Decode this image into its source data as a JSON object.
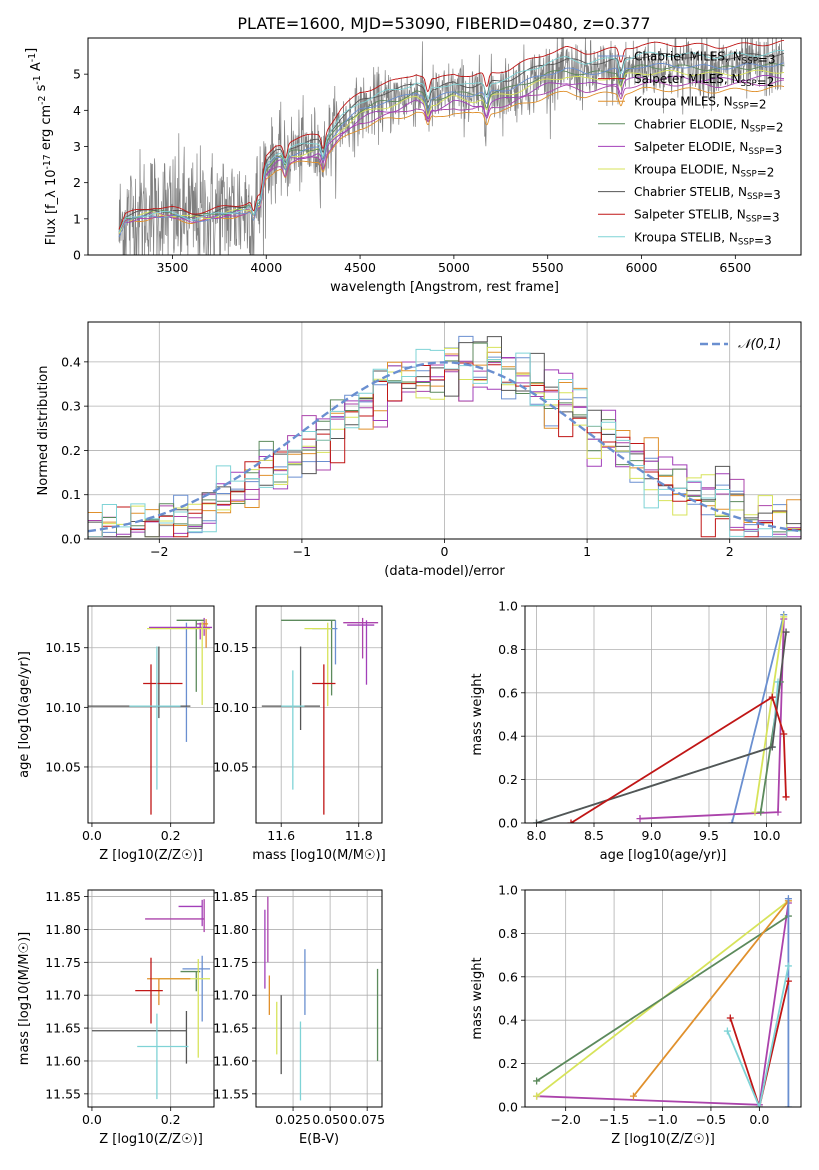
{
  "palette": [
    "#6a8fd0",
    "#ab43ab",
    "#e0902c",
    "#5c8a5c",
    "#a23fb9",
    "#d7e35a",
    "#555555",
    "#c01616",
    "#7fd3d6"
  ],
  "chart_data": [
    {
      "id": "spectrum",
      "type": "line",
      "title": "PLATE=1600, MJD=53090, FIBERID=0480, z=0.377",
      "xlabel": "wavelength [Angstrom, rest frame]",
      "ylabel": "Flux [f_λ 10^-17 erg cm^-2 s^-1 A^-1]",
      "xlim": [
        3050,
        6850
      ],
      "ylim": [
        0,
        6
      ],
      "xticks": [
        3500,
        4000,
        4500,
        5000,
        5500,
        6000,
        6500
      ],
      "yticks": [
        0,
        1,
        2,
        3,
        4,
        5
      ],
      "grid": false,
      "legend_position": "top-right",
      "legend": [
        "Chabrier MILES, N_SSP=3",
        "Salpeter MILES, N_SSP=2",
        "Kroupa MILES, N_SSP=2",
        "Chabrier ELODIE, N_SSP=2",
        "Salpeter ELODIE, N_SSP=3",
        "Kroupa ELODIE, N_SSP=2",
        "Chabrier STELIB, N_SSP=3",
        "Salpeter STELIB, N_SSP=3",
        "Kroupa STELIB, N_SSP=3"
      ],
      "continuum_x": [
        3200,
        3250,
        3400,
        3500,
        3600,
        3700,
        3800,
        3900,
        3950,
        4000,
        4050,
        4100,
        4200,
        4300,
        4400,
        4500,
        4600,
        4700,
        4800,
        4900,
        5000,
        5100,
        5200,
        5300,
        5400,
        5500,
        5600,
        5700,
        5800,
        5900,
        6000,
        6200,
        6400,
        6600,
        6750
      ],
      "continuum_y": [
        0.5,
        1.0,
        1.2,
        1.15,
        1.05,
        1.1,
        1.2,
        1.3,
        1.5,
        2.4,
        2.7,
        2.8,
        2.9,
        3.0,
        3.6,
        4.0,
        4.2,
        4.3,
        4.5,
        4.3,
        4.5,
        4.4,
        4.5,
        4.6,
        4.8,
        5.0,
        5.1,
        5.0,
        5.05,
        5.1,
        5.2,
        5.2,
        5.15,
        5.2,
        5.25
      ],
      "observed_series": "noisy grey spectrum around the model continuum"
    },
    {
      "id": "residuals",
      "type": "line",
      "xlabel": "(data-model)/error",
      "ylabel": "Normed distribution",
      "xlim": [
        -2.5,
        2.5
      ],
      "ylim": [
        0,
        0.49
      ],
      "xticks": [
        -2,
        -1,
        0,
        1,
        2
      ],
      "yticks": [
        0.0,
        0.1,
        0.2,
        0.3,
        0.4
      ],
      "grid": true,
      "legend_position": "top-right",
      "legend": [
        "𝒩(0,1)"
      ],
      "histogram_centre": 0.15,
      "histogram_sigma": 0.98
    },
    {
      "id": "age-vs-Z",
      "type": "scatter",
      "xlabel": "Z [log10(Z/Z☉)]",
      "ylabel": "age  [log10(age/yr)]",
      "xlim": [
        -0.01,
        0.31
      ],
      "ylim": [
        10.003,
        10.185
      ],
      "xticks": [
        0.0,
        0.2
      ],
      "yticks": [
        10.05,
        10.1,
        10.15
      ],
      "grid": true,
      "points": [
        {
          "x": 0.24,
          "y": 10.101,
          "xerr": [
            0.085,
            0.0
          ],
          "yerr": [
            0.03,
            0.07
          ],
          "c": 0
        },
        {
          "x": 0.285,
          "y": 10.17,
          "xerr": [
            0.02,
            0.005
          ],
          "yerr": [
            0.01,
            0.005
          ],
          "c": 1
        },
        {
          "x": 0.29,
          "y": 10.17,
          "xerr": [
            0.01,
            0.005
          ],
          "yerr": [
            0.02,
            0.004
          ],
          "c": 2
        },
        {
          "x": 0.265,
          "y": 10.173,
          "xerr": [
            0.05,
            0.02
          ],
          "yerr": [
            0.06,
            0.0
          ],
          "c": 3
        },
        {
          "x": 0.275,
          "y": 10.167,
          "xerr": [
            0.13,
            0.03
          ],
          "yerr": [
            0.01,
            0.004
          ],
          "c": 4
        },
        {
          "x": 0.28,
          "y": 10.166,
          "xerr": [
            0.14,
            0.02
          ],
          "yerr": [
            0.064,
            0.006
          ],
          "c": 5
        },
        {
          "x": 0.17,
          "y": 10.101,
          "xerr": [
            0.2,
            0.08
          ],
          "yerr": [
            0.01,
            0.05
          ],
          "c": 6
        },
        {
          "x": 0.15,
          "y": 10.12,
          "xerr": [
            0.02,
            0.08
          ],
          "yerr": [
            0.11,
            0.016
          ],
          "c": 7
        },
        {
          "x": 0.165,
          "y": 10.101,
          "xerr": [
            0.07,
            0.06
          ],
          "yerr": [
            0.07,
            0.05
          ],
          "c": 8
        }
      ]
    },
    {
      "id": "age-vs-mass",
      "type": "scatter",
      "xlabel": "mass [log10(M/M☉)]",
      "ylabel": "",
      "xlim": [
        11.535,
        11.86
      ],
      "ylim": [
        10.003,
        10.185
      ],
      "xticks": [
        11.6,
        11.8
      ],
      "yticks": [
        10.05,
        10.1,
        10.15
      ],
      "grid": true,
      "points": [
        {
          "x": 11.74,
          "y": 10.166,
          "xerr": [
            0.06,
            0.005
          ],
          "yerr": [
            0.03,
            0.007
          ],
          "c": 0
        },
        {
          "x": 11.81,
          "y": 10.171,
          "xerr": [
            0.05,
            0.04
          ],
          "yerr": [
            0.03,
            0.004
          ],
          "c": 1
        },
        {
          "x": 11.82,
          "y": 10.169,
          "xerr": [
            0.05,
            0.02
          ],
          "yerr": [
            0.05,
            0.004
          ],
          "c": 4
        },
        {
          "x": 11.73,
          "y": 10.173,
          "xerr": [
            0.13,
            0.01
          ],
          "yerr": [
            0.063,
            0.0
          ],
          "c": 3
        },
        {
          "x": 11.72,
          "y": 10.166,
          "xerr": [
            0.06,
            0.01
          ],
          "yerr": [
            0.065,
            0.005
          ],
          "c": 5
        },
        {
          "x": 11.65,
          "y": 10.101,
          "xerr": [
            0.1,
            0.05
          ],
          "yerr": [
            0.02,
            0.05
          ],
          "c": 6
        },
        {
          "x": 11.71,
          "y": 10.12,
          "xerr": [
            0.03,
            0.03
          ],
          "yerr": [
            0.11,
            0.016
          ],
          "c": 7
        },
        {
          "x": 11.63,
          "y": 10.101,
          "xerr": [
            0.03,
            0.03
          ],
          "yerr": [
            0.07,
            0.03
          ],
          "c": 8
        }
      ]
    },
    {
      "id": "weight-vs-age",
      "type": "line",
      "xlabel": "age  [log10(age/yr)]",
      "ylabel": "mass weight",
      "xlim": [
        7.9,
        10.3
      ],
      "ylim": [
        0,
        1
      ],
      "xticks": [
        8.0,
        8.5,
        9.0,
        9.5,
        10.0
      ],
      "yticks": [
        0.0,
        0.2,
        0.4,
        0.6,
        0.8,
        1.0
      ],
      "grid": true,
      "series": [
        {
          "c": 0,
          "x": [
            9.7,
            10.15
          ],
          "y": [
            0.0,
            0.96
          ]
        },
        {
          "c": 1,
          "x": [
            8.9,
            10.1,
            10.15
          ],
          "y": [
            0.02,
            0.05,
            0.94
          ]
        },
        {
          "c": 5,
          "x": [
            9.9,
            10.15
          ],
          "y": [
            0.05,
            0.95
          ]
        },
        {
          "c": 3,
          "x": [
            9.95,
            10.12
          ],
          "y": [
            0.05,
            0.65
          ]
        },
        {
          "c": 8,
          "x": [
            8.0,
            10.05,
            10.1
          ],
          "y": [
            0.0,
            0.35,
            0.65
          ]
        },
        {
          "c": 6,
          "x": [
            8.0,
            10.05,
            10.17
          ],
          "y": [
            0.0,
            0.35,
            0.88
          ]
        },
        {
          "c": 7,
          "x": [
            8.3,
            10.05,
            10.15,
            10.17
          ],
          "y": [
            0.0,
            0.58,
            0.41,
            0.12
          ]
        }
      ]
    },
    {
      "id": "mass-vs-Z",
      "type": "scatter",
      "xlabel": "Z [log10(Z/Z☉)]",
      "ylabel": "mass [log10(M/M☉)]",
      "xlim": [
        -0.01,
        0.31
      ],
      "ylim": [
        11.53,
        11.86
      ],
      "xticks": [
        0.0,
        0.2
      ],
      "yticks": [
        11.55,
        11.6,
        11.65,
        11.7,
        11.75,
        11.8,
        11.85
      ],
      "grid": true,
      "points": [
        {
          "x": 0.24,
          "y": 11.646,
          "xerr": [
            0.24,
            0.0
          ],
          "yerr": [
            0.05,
            0.03
          ],
          "c": 6
        },
        {
          "x": 0.28,
          "y": 11.74,
          "xerr": [
            0.05,
            0.02
          ],
          "yerr": [
            0.08,
            0.02
          ],
          "c": 0
        },
        {
          "x": 0.285,
          "y": 11.816,
          "xerr": [
            0.15,
            0.0
          ],
          "yerr": [
            0.02,
            0.03
          ],
          "c": 1
        },
        {
          "x": 0.28,
          "y": 11.835,
          "xerr": [
            0.06,
            0.0
          ],
          "yerr": [
            0.03,
            0.01
          ],
          "c": 4
        },
        {
          "x": 0.265,
          "y": 11.736,
          "xerr": [
            0.04,
            0.01
          ],
          "yerr": [
            0.03,
            0.0
          ],
          "c": 3
        },
        {
          "x": 0.27,
          "y": 11.725,
          "xerr": [
            0.1,
            0.03
          ],
          "yerr": [
            0.12,
            0.03
          ],
          "c": 5
        },
        {
          "x": 0.17,
          "y": 11.725,
          "xerr": [
            0.03,
            0.08
          ],
          "yerr": [
            0.04,
            0.0
          ],
          "c": 2
        },
        {
          "x": 0.15,
          "y": 11.707,
          "xerr": [
            0.04,
            0.03
          ],
          "yerr": [
            0.05,
            0.05
          ],
          "c": 7
        },
        {
          "x": 0.165,
          "y": 11.622,
          "xerr": [
            0.05,
            0.08
          ],
          "yerr": [
            0.08,
            0.05
          ],
          "c": 8
        }
      ]
    },
    {
      "id": "mass-vs-EBV",
      "type": "scatter",
      "xlabel": "E(B-V)",
      "ylabel": "",
      "xlim": [
        0.0,
        0.085
      ],
      "ylim": [
        11.53,
        11.86
      ],
      "xticks": [
        0.025,
        0.05,
        0.075
      ],
      "xticklabels": [
        "0.025",
        "0.050",
        "0.075"
      ],
      "yticks": [
        11.55,
        11.6,
        11.65,
        11.7,
        11.75,
        11.8,
        11.85
      ],
      "grid": true,
      "points": [
        {
          "x": 0.008,
          "y": 11.8,
          "yerr": [
            0.05,
            0.05
          ],
          "c": 1
        },
        {
          "x": 0.006,
          "y": 11.77,
          "yerr": [
            0.06,
            0.06
          ],
          "c": 4
        },
        {
          "x": 0.009,
          "y": 11.7,
          "yerr": [
            0.03,
            0.03
          ],
          "c": 2
        },
        {
          "x": 0.014,
          "y": 11.65,
          "yerr": [
            0.04,
            0.04
          ],
          "c": 5
        },
        {
          "x": 0.017,
          "y": 11.64,
          "yerr": [
            0.06,
            0.06
          ],
          "c": 6
        },
        {
          "x": 0.03,
          "y": 11.6,
          "yerr": [
            0.06,
            0.06
          ],
          "c": 8
        },
        {
          "x": 0.033,
          "y": 11.72,
          "yerr": [
            0.05,
            0.05
          ],
          "c": 0
        },
        {
          "x": 0.082,
          "y": 11.67,
          "yerr": [
            0.07,
            0.07
          ],
          "c": 3
        }
      ]
    },
    {
      "id": "weight-vs-Z",
      "type": "line",
      "xlabel": "Z [log10(Z/Z☉)]",
      "ylabel": "mass weight",
      "xlim": [
        -2.42,
        0.43
      ],
      "ylim": [
        0,
        1
      ],
      "xticks": [
        -2.0,
        -1.5,
        -1.0,
        -0.5,
        0.0
      ],
      "yticks": [
        0.0,
        0.2,
        0.4,
        0.6,
        0.8,
        1.0
      ],
      "grid": true,
      "series": [
        {
          "c": 1,
          "x": [
            -2.3,
            0.0,
            0.3
          ],
          "y": [
            0.05,
            0.01,
            0.94
          ]
        },
        {
          "c": 5,
          "x": [
            -2.3,
            0.3
          ],
          "y": [
            0.05,
            0.95
          ]
        },
        {
          "c": 3,
          "x": [
            -2.3,
            0.3
          ],
          "y": [
            0.12,
            0.88
          ]
        },
        {
          "c": 2,
          "x": [
            -1.3,
            0.3
          ],
          "y": [
            0.05,
            0.95
          ]
        },
        {
          "c": 0,
          "x": [
            0.3,
            0.3
          ],
          "y": [
            0.0,
            0.96
          ]
        },
        {
          "c": 7,
          "x": [
            -0.3,
            0.0,
            0.3
          ],
          "y": [
            0.41,
            0.0,
            0.58
          ]
        },
        {
          "c": 8,
          "x": [
            -0.33,
            0.0,
            0.3
          ],
          "y": [
            0.35,
            0.0,
            0.65
          ]
        }
      ]
    }
  ]
}
